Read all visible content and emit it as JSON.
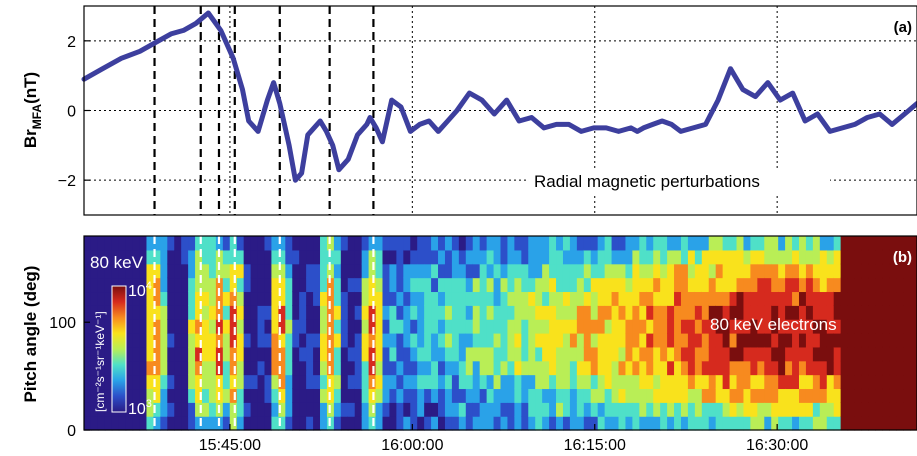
{
  "chart_data": [
    {
      "panel_label": "(a)",
      "type": "line",
      "ylabel_main": "Br",
      "ylabel_sub": "MFA",
      "ylabel_unit": "(nT)",
      "annotation": "Radial magnetic perturbations",
      "ylim": [
        -3,
        3
      ],
      "yticks": [
        "2",
        "0",
        "−2"
      ],
      "ytick_values": [
        2,
        0,
        -2
      ],
      "grid": "dotted",
      "line_color": "#3d3f9e",
      "x_minutes": [
        0,
        3,
        6,
        9,
        12,
        14,
        16,
        18,
        20,
        22,
        24,
        25.5,
        26.5,
        28,
        29.5,
        30.5,
        31.5,
        33,
        34,
        35,
        36,
        38,
        39,
        40,
        41,
        42.5,
        44,
        45.5,
        46,
        47,
        48,
        49.5,
        51,
        52.5,
        54,
        55.5,
        57,
        58.5,
        60,
        62,
        64,
        66,
        68,
        70,
        72,
        74,
        76,
        78,
        80,
        82,
        84,
        86,
        88,
        89,
        90,
        91.5,
        93,
        94.5,
        96,
        98,
        100,
        102,
        104,
        106,
        108,
        110,
        112,
        114,
        116,
        118,
        120,
        122,
        124,
        126,
        128,
        130,
        132,
        134
      ],
      "values": [
        0.9,
        1.2,
        1.5,
        1.7,
        2.0,
        2.2,
        2.3,
        2.5,
        2.8,
        2.3,
        1.5,
        0.6,
        -0.3,
        -0.6,
        0.3,
        0.8,
        0.2,
        -1.0,
        -2.0,
        -1.8,
        -0.7,
        -0.3,
        -0.6,
        -1.0,
        -1.7,
        -1.4,
        -0.7,
        -0.4,
        -0.2,
        -0.5,
        -0.9,
        0.3,
        0.1,
        -0.6,
        -0.4,
        -0.3,
        -0.6,
        -0.3,
        0.0,
        0.5,
        0.3,
        -0.1,
        0.3,
        -0.3,
        -0.2,
        -0.5,
        -0.4,
        -0.4,
        -0.6,
        -0.5,
        -0.5,
        -0.6,
        -0.5,
        -0.6,
        -0.5,
        -0.4,
        -0.3,
        -0.4,
        -0.6,
        -0.5,
        -0.4,
        0.3,
        1.2,
        0.6,
        0.4,
        0.8,
        0.3,
        0.5,
        -0.3,
        -0.1,
        -0.6,
        -0.5,
        -0.4,
        -0.2,
        -0.1,
        -0.4,
        -0.1,
        0.2
      ]
    },
    {
      "panel_label": "(b)",
      "type": "heatmap",
      "ylabel": "Pitch angle (deg)",
      "energy_label": "80 keV",
      "annotation": "80 keV electrons",
      "ylim": [
        0,
        180
      ],
      "yticks": [
        "100",
        "0"
      ],
      "ytick_values": [
        100,
        0
      ],
      "colorbar_unit_label": "[cm⁻²s⁻¹sr⁻¹keV⁻¹]",
      "colorbar_max_base": "10",
      "colorbar_max_exp": "4",
      "colorbar_min_base": "10",
      "colorbar_min_exp": "3",
      "colormap": [
        "#2b1b86",
        "#2c4fc9",
        "#2aa2e8",
        "#4fe0c8",
        "#b9ee56",
        "#f9e21c",
        "#f78a1f",
        "#d62a1e",
        "#7a0e0e"
      ],
      "description_levels_by_time": "low before 15:39, bursts at dashed-line times, increasing toward saturation after 16:20",
      "xticks": [
        "15:45:00",
        "16:00:00",
        "16:15:00",
        "16:30:00"
      ],
      "xtick_minutes": [
        45,
        60,
        75,
        90
      ]
    }
  ],
  "x_axis": {
    "start_label": "15:33:00",
    "start_minute": 33,
    "end_minute": 101.5
  },
  "event_lines_minutes": [
    38.8,
    42.6,
    44.1,
    45.4,
    49.1,
    53.2,
    56.8
  ]
}
